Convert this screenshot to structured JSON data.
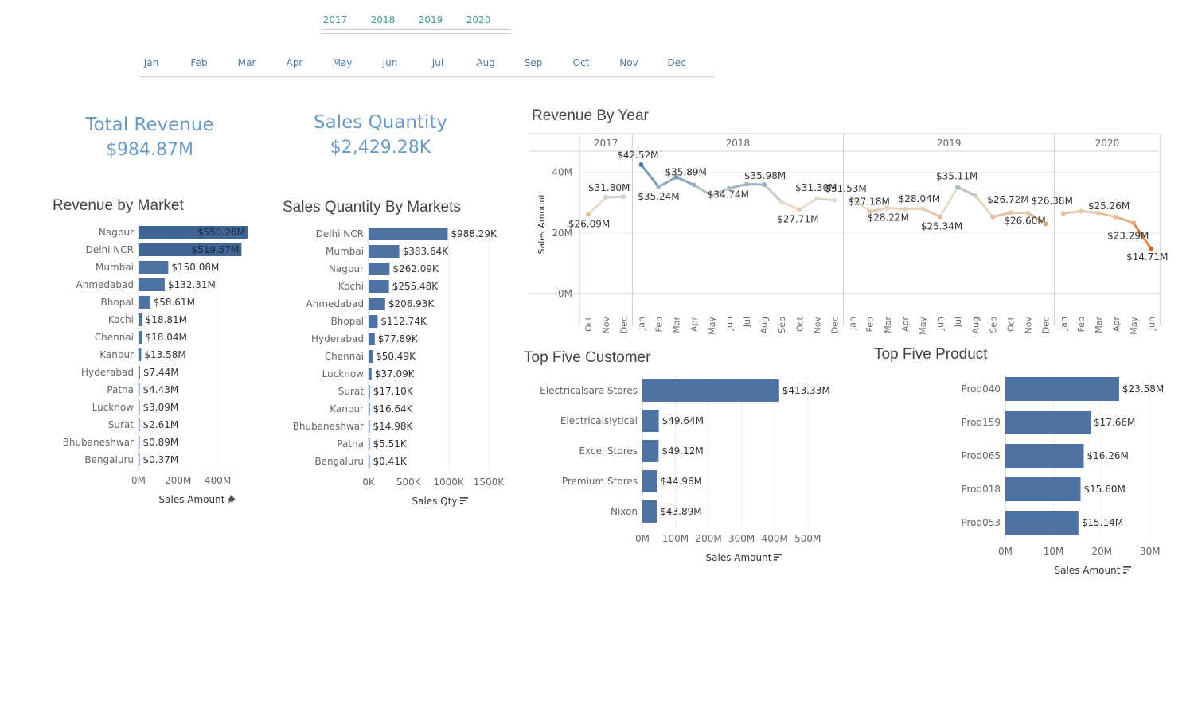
{
  "filters": {
    "years": [
      "2017",
      "2018",
      "2019",
      "2020"
    ],
    "months": [
      "Jan",
      "Feb",
      "Mar",
      "Apr",
      "May",
      "Jun",
      "Jul",
      "Aug",
      "Sep",
      "Oct",
      "Nov",
      "Dec"
    ]
  },
  "kpis": {
    "total_revenue": {
      "title": "Total Revenue",
      "value": "$984.87M"
    },
    "sales_quantity": {
      "title": "Sales Quantity",
      "value": "$2,429.28K"
    }
  },
  "colors": {
    "bar": "#4e73a3",
    "bar_dark": "#3f6596",
    "grid": "#ececec",
    "axis": "#cfcfcf",
    "label": "#333333",
    "tick": "#666666"
  },
  "chart_data": [
    {
      "id": "revenue-by-market",
      "type": "bar",
      "title": "Revenue by Market",
      "xlabel": "Sales Amount",
      "xlabel_icon": "pin-icon",
      "xlim": [
        0,
        550.26
      ],
      "ticks": [
        0,
        200,
        400
      ],
      "tick_labels": [
        "0M",
        "200M",
        "400M"
      ],
      "categories": [
        "Nagpur",
        "Delhi NCR",
        "Mumbai",
        "Ahmedabad",
        "Bhopal",
        "Kochi",
        "Chennai",
        "Kanpur",
        "Hyderabad",
        "Patna",
        "Lucknow",
        "Surat",
        "Bhubaneshwar",
        "Bengaluru"
      ],
      "values": [
        550.26,
        519.57,
        150.08,
        132.31,
        58.61,
        18.81,
        18.04,
        13.58,
        7.44,
        4.43,
        3.09,
        2.61,
        0.89,
        0.37
      ],
      "labels": [
        "$550.26M",
        "$519.57M",
        "$150.08M",
        "$132.31M",
        "$58.61M",
        "$18.81M",
        "$18.04M",
        "$13.58M",
        "$7.44M",
        "$4.43M",
        "$3.09M",
        "$2.61M",
        "$0.89M",
        "$0.37M"
      ]
    },
    {
      "id": "sales-qty-by-markets",
      "type": "bar",
      "title": "Sales Quantity By Markets",
      "xlabel": "Sales Qty",
      "xlabel_icon": "sort-icon",
      "xlim": [
        0,
        1650
      ],
      "ticks": [
        0,
        500,
        1000,
        1500
      ],
      "tick_labels": [
        "0K",
        "500K",
        "1000K",
        "1500K"
      ],
      "categories": [
        "Delhi NCR",
        "Mumbai",
        "Nagpur",
        "Kochi",
        "Ahmedabad",
        "Bhopal",
        "Hyderabad",
        "Chennai",
        "Lucknow",
        "Surat",
        "Kanpur",
        "Bhubaneshwar",
        "Patna",
        "Bengaluru"
      ],
      "values": [
        988.29,
        383.64,
        262.09,
        255.48,
        206.93,
        112.74,
        77.89,
        50.49,
        37.09,
        17.1,
        16.64,
        14.98,
        5.51,
        0.41
      ],
      "labels": [
        "$988.29K",
        "$383.64K",
        "$262.09K",
        "$255.48K",
        "$206.93K",
        "$112.74K",
        "$77.89K",
        "$50.49K",
        "$37.09K",
        "$17.10K",
        "$16.64K",
        "$14.98K",
        "$5.51K",
        "$0.41K"
      ]
    },
    {
      "id": "revenue-by-year",
      "type": "line",
      "title": "Revenue By Year",
      "ylabel": "Sales Amount",
      "ylim": [
        0,
        47
      ],
      "yticks": [
        0,
        20,
        40
      ],
      "ytick_labels": [
        "0M",
        "20M",
        "40M"
      ],
      "grid": true,
      "panels": [
        {
          "year": "2017",
          "months": [
            "Oct",
            "Nov",
            "Dec"
          ],
          "values": [
            26.09,
            31.8,
            32.0
          ],
          "labels": [
            "$26.09M",
            "$31.80M",
            ""
          ]
        },
        {
          "year": "2018",
          "months": [
            "Jan",
            "Feb",
            "Mar",
            "Apr",
            "May",
            "Jun",
            "Jul",
            "Aug",
            "Sep",
            "Oct",
            "Nov",
            "Dec"
          ],
          "values": [
            42.52,
            35.24,
            38.4,
            35.89,
            32.4,
            34.74,
            36.1,
            35.98,
            30.2,
            27.71,
            31.3,
            30.8
          ],
          "labels": [
            "$42.52M",
            "$35.24M",
            "",
            "$35.89M",
            "",
            "$34.74M",
            "",
            "$35.98M",
            "",
            "$27.71M",
            "$31.30M",
            ""
          ]
        },
        {
          "year": "2019",
          "months": [
            "Jan",
            "Feb",
            "Mar",
            "Apr",
            "May",
            "Jun",
            "Jul",
            "Aug",
            "Sep",
            "Oct",
            "Nov",
            "Dec"
          ],
          "values": [
            31.53,
            27.18,
            28.22,
            27.9,
            28.04,
            25.34,
            35.11,
            32.3,
            25.3,
            26.72,
            26.6,
            23.0
          ],
          "labels": [
            "$31.53M",
            "$27.18M",
            "$28.22M",
            "",
            "$28.04M",
            "$25.34M",
            "$35.11M",
            "",
            "",
            "$26.72M",
            "$26.60M",
            ""
          ]
        },
        {
          "year": "2020",
          "months": [
            "Jan",
            "Feb",
            "Mar",
            "Apr",
            "May",
            "Jun"
          ],
          "values": [
            26.38,
            27.2,
            26.6,
            25.26,
            23.29,
            14.71
          ],
          "labels": [
            "$26.38M",
            "",
            "",
            "$25.26M",
            "$23.29M",
            "$14.71M"
          ]
        }
      ],
      "color_scale": {
        "low": "#d9651c",
        "mid": "#e8e2cf",
        "high": "#4e7fb0"
      }
    },
    {
      "id": "top-five-customer",
      "type": "bar",
      "title": "Top Five Customer",
      "xlabel": "Sales Amount",
      "xlabel_icon": "sort-icon",
      "xlim": [
        0,
        580
      ],
      "ticks": [
        0,
        100,
        200,
        300,
        400,
        500
      ],
      "tick_labels": [
        "0M",
        "100M",
        "200M",
        "300M",
        "400M",
        "500M"
      ],
      "categories": [
        "Electricalsara Stores",
        "Electricalslytical",
        "Excel Stores",
        "Premium Stores",
        "Nixon"
      ],
      "values": [
        413.33,
        49.64,
        49.12,
        44.96,
        43.89
      ],
      "labels": [
        "$413.33M",
        "$49.64M",
        "$49.12M",
        "$44.96M",
        "$43.89M"
      ]
    },
    {
      "id": "top-five-product",
      "type": "bar",
      "title": "Top Five Product",
      "xlabel": "Sales Amount",
      "xlabel_icon": "sort-icon",
      "xlim": [
        0,
        33
      ],
      "ticks": [
        0,
        10,
        20,
        30
      ],
      "tick_labels": [
        "0M",
        "10M",
        "20M",
        "30M"
      ],
      "categories": [
        "Prod040",
        "Prod159",
        "Prod065",
        "Prod018",
        "Prod053"
      ],
      "values": [
        23.58,
        17.66,
        16.26,
        15.6,
        15.14
      ],
      "labels": [
        "$23.58M",
        "$17.66M",
        "$16.26M",
        "$15.60M",
        "$15.14M"
      ]
    }
  ]
}
